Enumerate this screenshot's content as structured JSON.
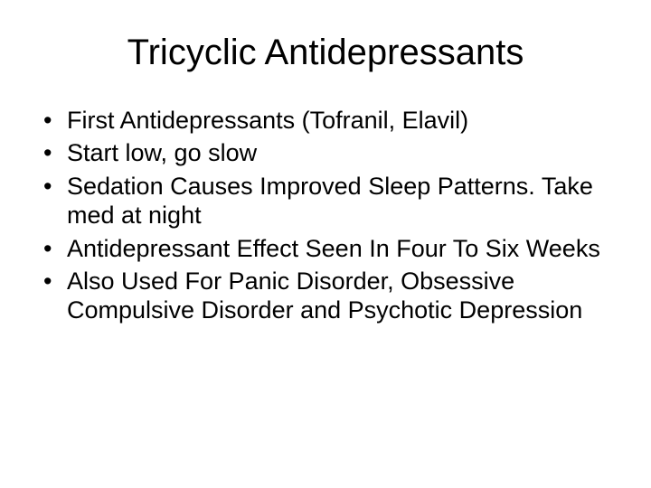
{
  "slide": {
    "title": "Tricyclic Antidepressants",
    "title_fontsize": 40,
    "background_color": "#ffffff",
    "text_color": "#000000",
    "bullet_fontsize": 27,
    "bullets": [
      "First Antidepressants (Tofranil, Elavil)",
      "Start low, go slow",
      "Sedation Causes Improved Sleep Patterns. Take med at night",
      "Antidepressant Effect Seen In Four To Six Weeks",
      "Also Used For Panic Disorder, Obsessive Compulsive Disorder and Psychotic Depression"
    ]
  }
}
